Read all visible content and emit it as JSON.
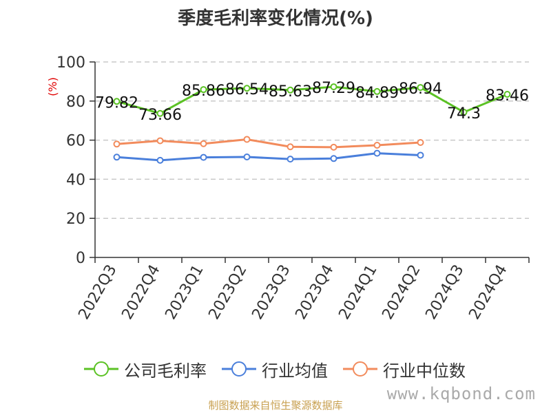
{
  "title": "季度毛利率变化情况(%)",
  "source": "制图数据来自恒生聚源数据库",
  "watermark": "www.kqbond.com",
  "chart_data": {
    "type": "line",
    "title": "季度毛利率变化情况(%)",
    "ylabel": "(%)",
    "ylim": [
      0,
      100
    ],
    "yticks": [
      0,
      20,
      40,
      60,
      80,
      100
    ],
    "categories": [
      "2022Q3",
      "2022Q4",
      "2023Q1",
      "2023Q2",
      "2023Q3",
      "2023Q4",
      "2024Q1",
      "2024Q2",
      "2024Q3",
      "2024Q4"
    ],
    "grid": true,
    "legend_position": "bottom",
    "series": [
      {
        "name": "公司毛利率",
        "color": "#5bc224",
        "values": [
          79.82,
          73.66,
          85.86,
          86.54,
          85.63,
          87.29,
          84.89,
          86.94,
          74.3,
          83.46
        ],
        "labels": [
          "79.82",
          "73.66",
          "85.86",
          "86.54",
          "85.63",
          "87.29",
          "84.89",
          "86.94",
          "74.3",
          "83.46"
        ]
      },
      {
        "name": "行业均值",
        "color": "#4a7fdb",
        "values": [
          51.3,
          49.7,
          51.2,
          51.4,
          50.3,
          50.6,
          53.3,
          52.3,
          null,
          null
        ]
      },
      {
        "name": "行业中位数",
        "color": "#f28b5c",
        "values": [
          58.0,
          59.7,
          58.2,
          60.4,
          56.6,
          56.4,
          57.4,
          58.8,
          null,
          null
        ]
      }
    ]
  }
}
